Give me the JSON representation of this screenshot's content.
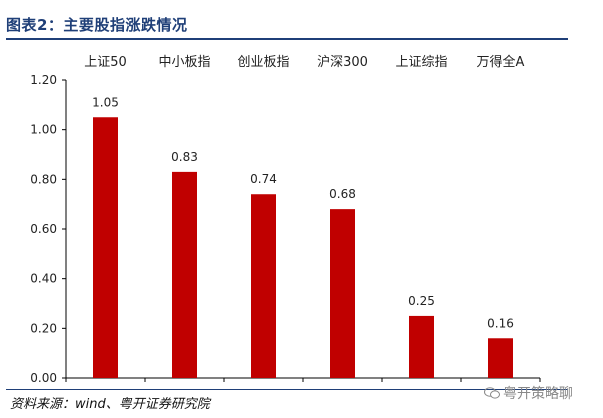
{
  "header": {
    "title": "图表2：主要股指涨跌情况"
  },
  "footer": {
    "source": "资料来源：wind、粤开证券研究院",
    "watermark": "粤开策略聊"
  },
  "colors": {
    "bar": "#c00000",
    "title": "#1f3f78",
    "axis": "#000000"
  },
  "chart_data": {
    "type": "bar",
    "categories": [
      "上证50",
      "中小板指",
      "创业板指",
      "沪深300",
      "上证综指",
      "万得全A"
    ],
    "values": [
      1.05,
      0.83,
      0.74,
      0.68,
      0.25,
      0.16
    ],
    "data_labels": [
      "1.05",
      "0.83",
      "0.74",
      "0.68",
      "0.25",
      "0.16"
    ],
    "ylim": [
      0,
      1.2
    ],
    "yticks": [
      "0.00",
      "0.20",
      "0.40",
      "0.60",
      "0.80",
      "1.00",
      "1.20"
    ],
    "xlabel": "",
    "ylabel": "",
    "category_labels_position": "top",
    "grid": false,
    "legend": "none"
  }
}
